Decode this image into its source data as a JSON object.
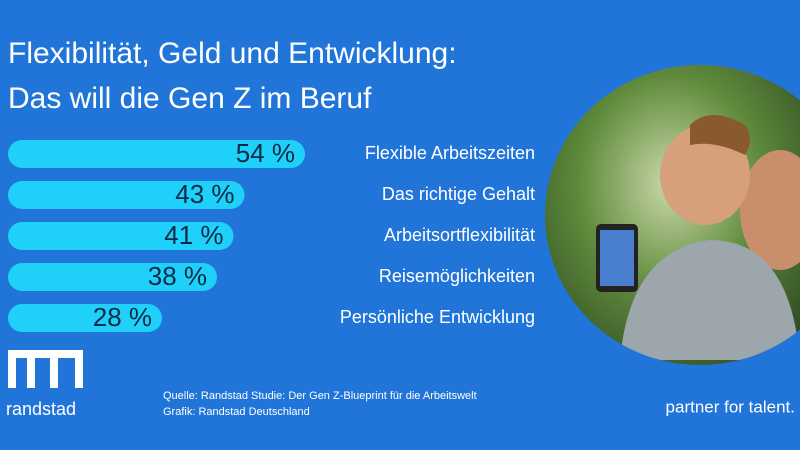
{
  "chart_data": {
    "type": "bar",
    "orientation": "horizontal",
    "title": "Flexibilität, Geld und Entwicklung:",
    "subtitle": "Das will die Gen Z im Beruf",
    "categories": [
      "Flexible Arbeitszeiten",
      "Das richtige Gehalt",
      "Arbeitsortflexibilität",
      "Reisemöglichkeiten",
      "Persönliche Entwicklung"
    ],
    "values": [
      54,
      43,
      41,
      38,
      28
    ],
    "value_labels": [
      "54 %",
      "43 %",
      "41 %",
      "38 %",
      "28 %"
    ],
    "color": "#1fd1f9"
  },
  "footer": {
    "logo_text": "randstad",
    "source": "Quelle: Randstad Studie: Der Gen Z-Blueprint für die Arbeitswelt",
    "credit": "Grafik: Randstad Deutschland",
    "tagline": "partner for talent."
  }
}
